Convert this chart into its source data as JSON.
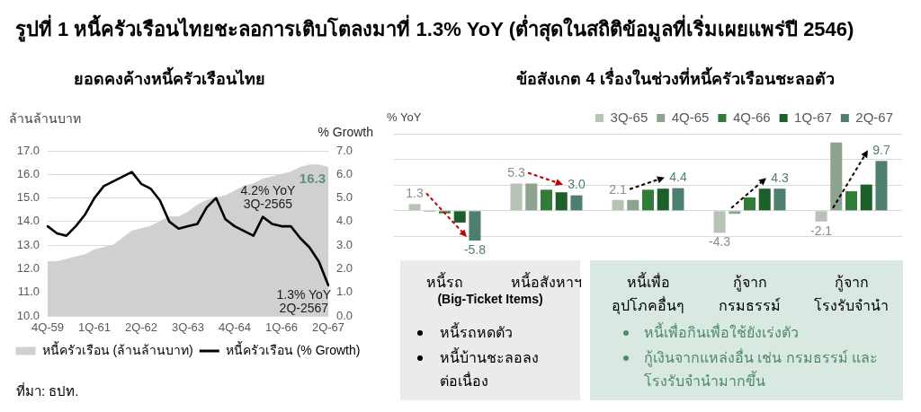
{
  "chart_data": [
    {
      "type": "line",
      "title": "รูปที่ 1 หนี้ครัวเรือนไทยชะลอการเติบโตลงมาที่ 1.3% YoY (ต่ำสุดในสถิติข้อมูลที่เริ่มเผยแพร่ปี 2546)",
      "subtitle": "ยอดคงค้างหนี้ครัวเรือนไทย",
      "ylabel": "ล้านล้านบาท",
      "y2label": "% Growth",
      "categories": [
        "4Q-59",
        null,
        null,
        null,
        null,
        "1Q-61",
        null,
        null,
        null,
        null,
        "2Q-62",
        null,
        null,
        null,
        null,
        "3Q-63",
        null,
        null,
        null,
        null,
        "4Q-64",
        null,
        null,
        null,
        null,
        "1Q-66",
        null,
        null,
        null,
        null,
        "2Q-67"
      ],
      "series": [
        {
          "name": "หนี้ครัวเรือน (ล้านล้านบาท)",
          "type": "area",
          "color": "#d0d0d0",
          "values": [
            12.3,
            12.3,
            12.4,
            12.5,
            12.6,
            12.8,
            12.9,
            13.0,
            13.3,
            13.6,
            13.7,
            13.8,
            14.0,
            14.2,
            14.2,
            14.4,
            14.7,
            14.9,
            15.0,
            15.1,
            15.3,
            15.5,
            15.6,
            15.8,
            15.9,
            16.0,
            16.1,
            16.3,
            16.4,
            16.4,
            16.3
          ],
          "value_labels": [
            null,
            null,
            null,
            null,
            null,
            null,
            null,
            null,
            null,
            null,
            null,
            null,
            null,
            null,
            null,
            null,
            null,
            null,
            null,
            null,
            null,
            null,
            null,
            null,
            null,
            null,
            null,
            null,
            null,
            null,
            "16.3"
          ]
        },
        {
          "name": "หนี้ครัวเรือน (% Growth)",
          "type": "line",
          "axis": "y2",
          "color": "#000000",
          "values": [
            3.8,
            3.5,
            3.4,
            3.8,
            4.3,
            5.0,
            5.5,
            5.7,
            5.9,
            6.1,
            5.6,
            5.4,
            4.9,
            4.0,
            3.7,
            3.8,
            3.9,
            4.6,
            5.0,
            4.1,
            3.8,
            3.6,
            3.4,
            4.2,
            3.9,
            3.8,
            3.8,
            3.3,
            2.9,
            2.3,
            1.3
          ]
        }
      ],
      "ylim": [
        10,
        17
      ],
      "yticks": [
        {
          "value": 10,
          "label": "10.0"
        },
        {
          "value": 11,
          "label": "11.0"
        },
        {
          "value": 12,
          "label": "12.0"
        },
        {
          "value": 13,
          "label": "13.0"
        },
        {
          "value": 14,
          "label": "14.0"
        },
        {
          "value": 15,
          "label": "15.0"
        },
        {
          "value": 16,
          "label": "16.0"
        },
        {
          "value": 17,
          "label": "17.0"
        }
      ],
      "y2lim": [
        0,
        7
      ],
      "y2ticks": [
        {
          "value": 0,
          "label": "0.0"
        },
        {
          "value": 1,
          "label": "1.0"
        },
        {
          "value": 2,
          "label": "2.0"
        },
        {
          "value": 3,
          "label": "3.0"
        },
        {
          "value": 4,
          "label": "4.0"
        },
        {
          "value": 5,
          "label": "5.0"
        },
        {
          "value": 6,
          "label": "6.0"
        },
        {
          "value": 7,
          "label": "7.0"
        }
      ],
      "grid": "y",
      "legend": "bottom",
      "marker": "none",
      "annotations": [
        "4.2% YoY\n3Q-2565",
        "1.3% YoY\n2Q-2567",
        "ที่มา: ธปท."
      ]
    },
    {
      "type": "bar",
      "title": "ข้อสังเกต 4 เรื่องในช่วงที่หนี้ครัวเรือนชะลอตัว",
      "ylabel": "% YoY",
      "categories": [
        "หนี้รถ",
        "หนี้อสังหาฯ",
        "หนี้เพื่อ\nอุปโภคอื่นๆ",
        "กู้จาก\nกรมธรรม์",
        "กู้จาก\nโรงรับจำนำ"
      ],
      "series": [
        {
          "name": "3Q-65",
          "color": "#b7c3b5",
          "values": [
            1.3,
            5.3,
            2.1,
            -4.3,
            -2.1
          ],
          "value_labels": [
            "1.3",
            "5.3",
            "2.1",
            "-4.3",
            "-2.1"
          ]
        },
        {
          "name": "4Q-65",
          "color": "#8ea38d",
          "values": [
            -0.2,
            5.3,
            2.1,
            -0.6,
            13.3
          ]
        },
        {
          "name": "4Q-66",
          "color": "#2f7d38",
          "values": [
            -0.5,
            4.1,
            4.1,
            2.6,
            3.8
          ]
        },
        {
          "name": "1Q-67",
          "color": "#1d5f28",
          "values": [
            -2.3,
            3.6,
            4.3,
            4.3,
            5.1
          ]
        },
        {
          "name": "2Q-67",
          "color": "#4e7f6c",
          "values": [
            -5.8,
            3.0,
            4.4,
            4.3,
            9.7
          ],
          "value_labels": [
            "-5.8",
            "3.0",
            "4.4",
            "4.3",
            "9.7"
          ]
        }
      ],
      "ylim": [
        -10,
        15
      ],
      "yticks": [
        {
          "value": -5,
          "label": null
        },
        {
          "value": 0,
          "label": null
        },
        {
          "value": 5,
          "label": null
        },
        {
          "value": 10,
          "label": null
        },
        {
          "value": 15,
          "label": null
        }
      ],
      "tick_labels": "x",
      "grid": "y",
      "legend": "top right",
      "annotations": [
        "(Big-Ticket Items)",
        "หนี้รถหดตัว",
        "หนี้บ้านชะลอลง\nต่อเนื่อง",
        "หนี้เพื่อกินเพื่อใช้ยังเร่งตัว",
        "กู้เงินจากแหล่งอื่น เช่น กรมธรรม์ และ\nโรงรับจำนำมากขึ้น"
      ]
    }
  ]
}
